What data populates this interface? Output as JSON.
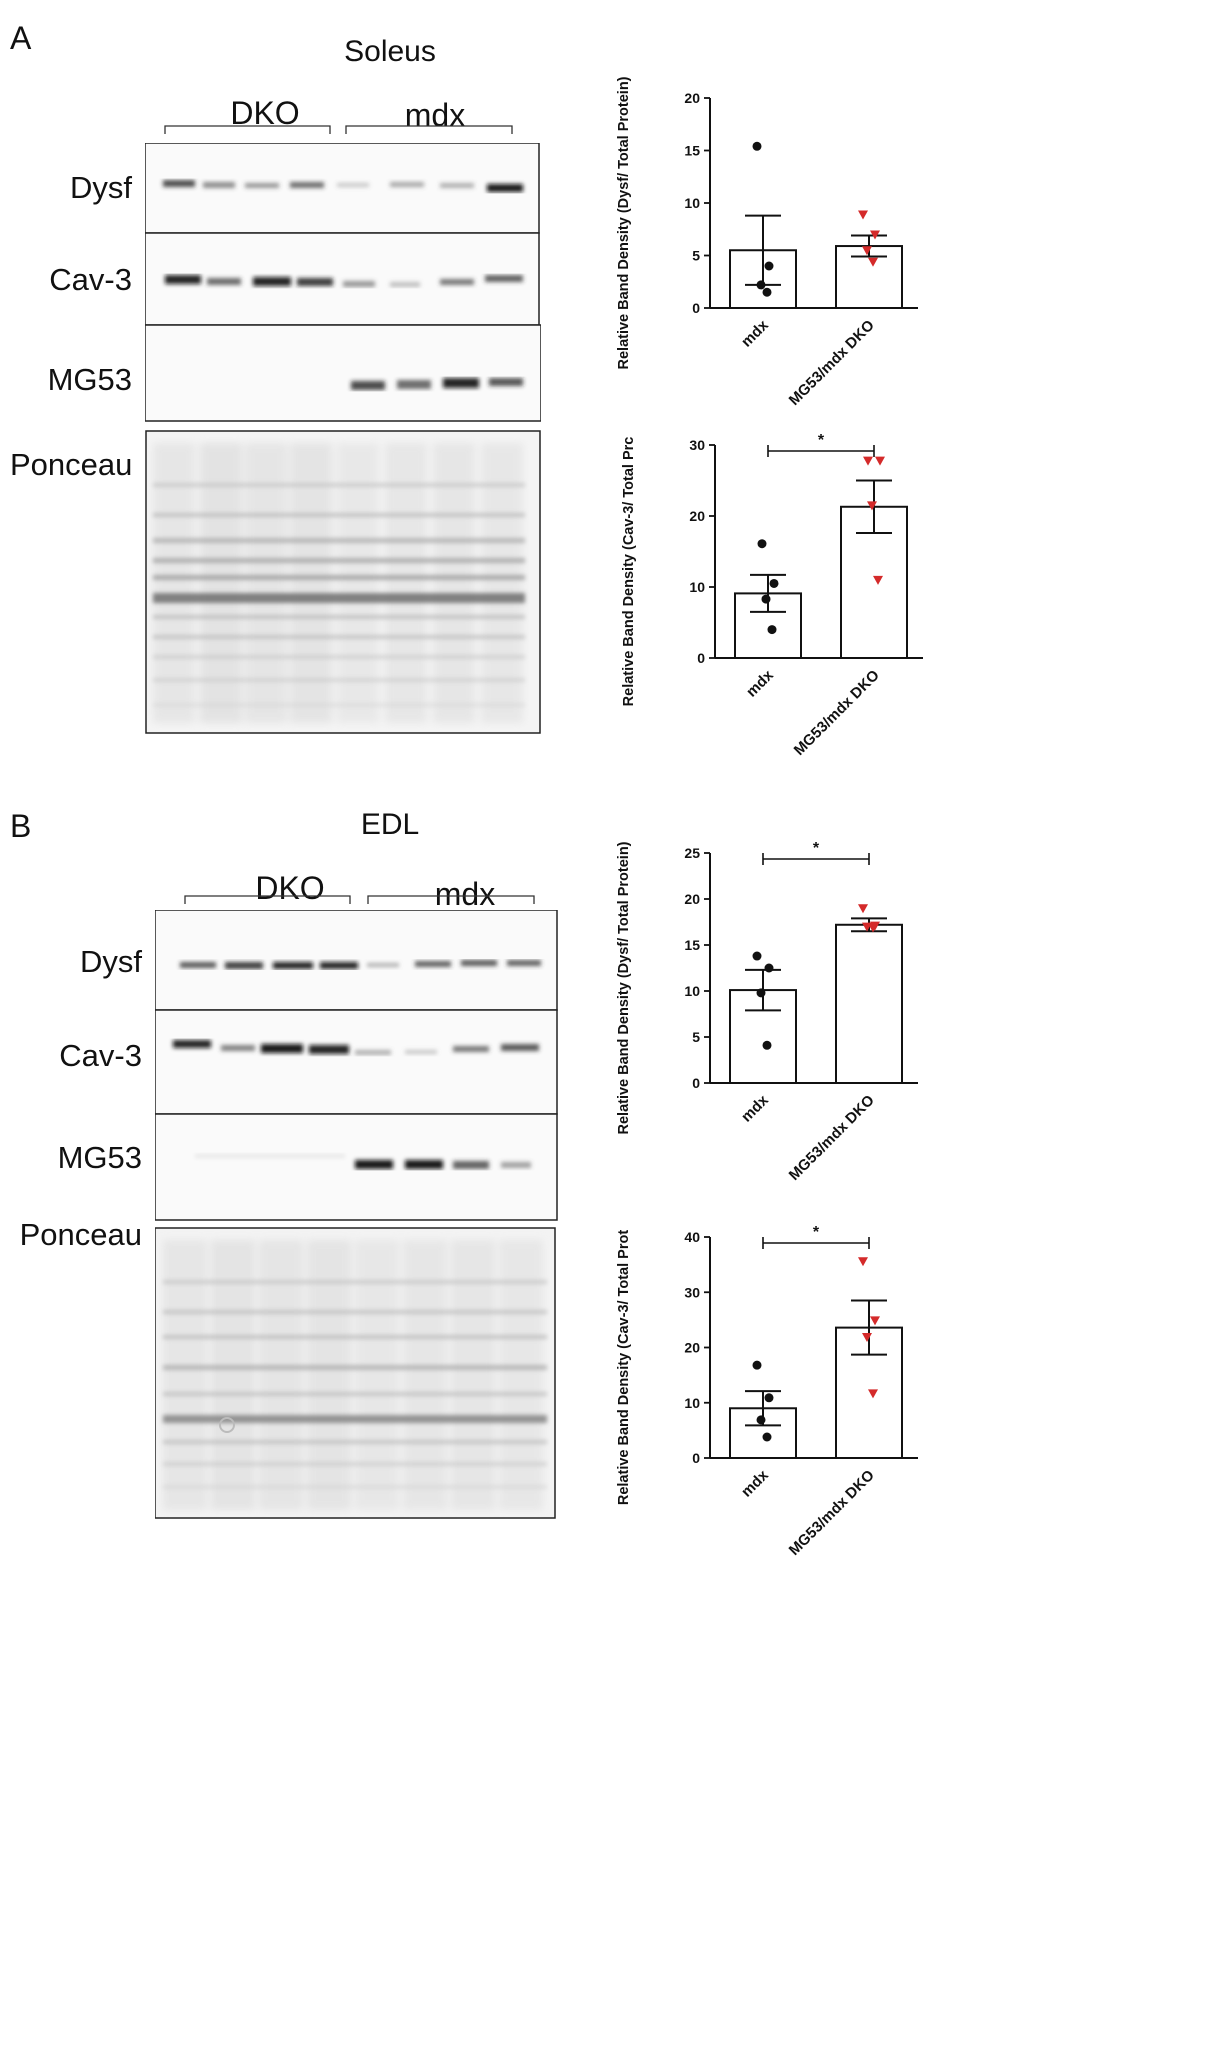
{
  "panel_a": {
    "letter": "A",
    "title": "Soleus",
    "groups": [
      "DKO",
      "mdx"
    ],
    "rows": [
      "Dysf",
      "Cav-3",
      "MG53",
      "Ponceau"
    ]
  },
  "panel_b": {
    "letter": "B",
    "title": "EDL",
    "groups": [
      "DKO",
      "mdx"
    ],
    "rows": [
      "Dysf",
      "Cav-3",
      "MG53",
      "Ponceau"
    ]
  },
  "colors": {
    "mdx_points": "#111111",
    "dko_points": "#d42a2a",
    "axis": "#111111"
  },
  "chart_data": [
    {
      "type": "bar",
      "panel": "A",
      "categories": [
        "mdx",
        "MG53/mdx DKO"
      ],
      "values": [
        5.5,
        5.9
      ],
      "sem": [
        3.3,
        1.0
      ],
      "points": [
        [
          15.4,
          4.0,
          2.2,
          1.5
        ],
        [
          8.9,
          7.0,
          5.5,
          4.4
        ]
      ],
      "ylabel": "Relative Band Density (Dysf/ Total Protein)",
      "ylim": [
        0,
        20
      ],
      "yticks": [
        0,
        5,
        10,
        15,
        20
      ],
      "significance": ""
    },
    {
      "type": "bar",
      "panel": "A",
      "categories": [
        "mdx",
        "MG53/mdx DKO"
      ],
      "values": [
        9.1,
        21.3
      ],
      "sem": [
        2.6,
        3.7
      ],
      "points": [
        [
          16.1,
          10.5,
          8.3,
          4.0
        ],
        [
          27.8,
          27.8,
          21.5,
          11.0
        ]
      ],
      "ylabel": "Relative Band Density (Cav-3/ Total Prc",
      "ylim": [
        0,
        30
      ],
      "yticks": [
        0,
        10,
        20,
        30
      ],
      "significance": "*"
    },
    {
      "type": "bar",
      "panel": "B",
      "categories": [
        "mdx",
        "MG53/mdx DKO"
      ],
      "values": [
        10.1,
        17.2
      ],
      "sem": [
        2.2,
        0.7
      ],
      "points": [
        [
          13.8,
          12.5,
          9.8,
          4.1
        ],
        [
          19.0,
          17.1,
          17.0,
          16.9
        ]
      ],
      "ylabel": "Relative Band Density (Dysf/ Total Protein)",
      "ylim": [
        0,
        25
      ],
      "yticks": [
        0,
        5,
        10,
        15,
        20,
        25
      ],
      "significance": "*"
    },
    {
      "type": "bar",
      "panel": "B",
      "categories": [
        "mdx",
        "MG53/mdx DKO"
      ],
      "values": [
        9.0,
        23.6
      ],
      "sem": [
        3.1,
        4.9
      ],
      "points": [
        [
          16.8,
          10.9,
          6.9,
          3.8
        ],
        [
          35.6,
          24.9,
          21.9,
          11.7
        ]
      ],
      "ylabel": "Relative Band Density (Cav-3/ Total Prot",
      "ylim": [
        0,
        40
      ],
      "yticks": [
        0,
        10,
        20,
        30,
        40
      ],
      "significance": "*"
    }
  ]
}
